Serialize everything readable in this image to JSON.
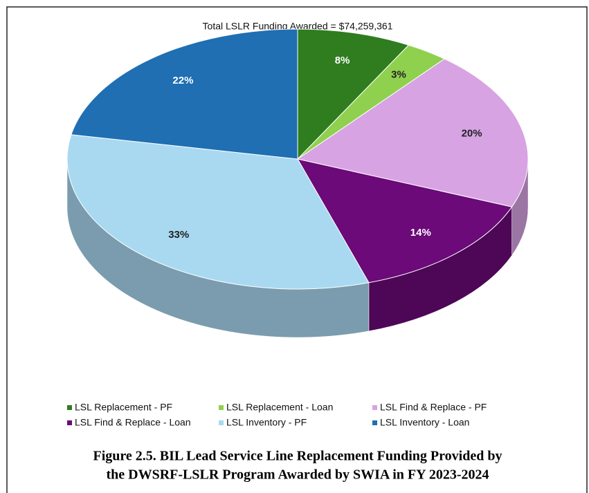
{
  "chart_data": {
    "type": "pie3d",
    "title": "Total LSLR Funding Awarded = $74,259,361",
    "categories": [
      "LSL Replacement - PF",
      "LSL Replacement - Loan",
      "LSL Find & Replace - PF",
      "LSL Find & Replace - Loan",
      "LSL Inventory - PF",
      "LSL Inventory - Loan"
    ],
    "values": [
      8,
      3,
      20,
      14,
      33,
      22
    ],
    "value_labels": [
      "8%",
      "3%",
      "20%",
      "14%",
      "33%",
      "22%"
    ],
    "colors": [
      "#2f7d1f",
      "#8fd04f",
      "#d7a3e3",
      "#6b0a78",
      "#a9d9f1",
      "#1f6fb2"
    ],
    "legend": "bottom",
    "caption": [
      "Figure 2.5. BIL Lead Service Line Replacement Funding Provided by",
      "the DWSRF-LSLR Program Awarded by SWIA in FY 2023-2024"
    ]
  }
}
